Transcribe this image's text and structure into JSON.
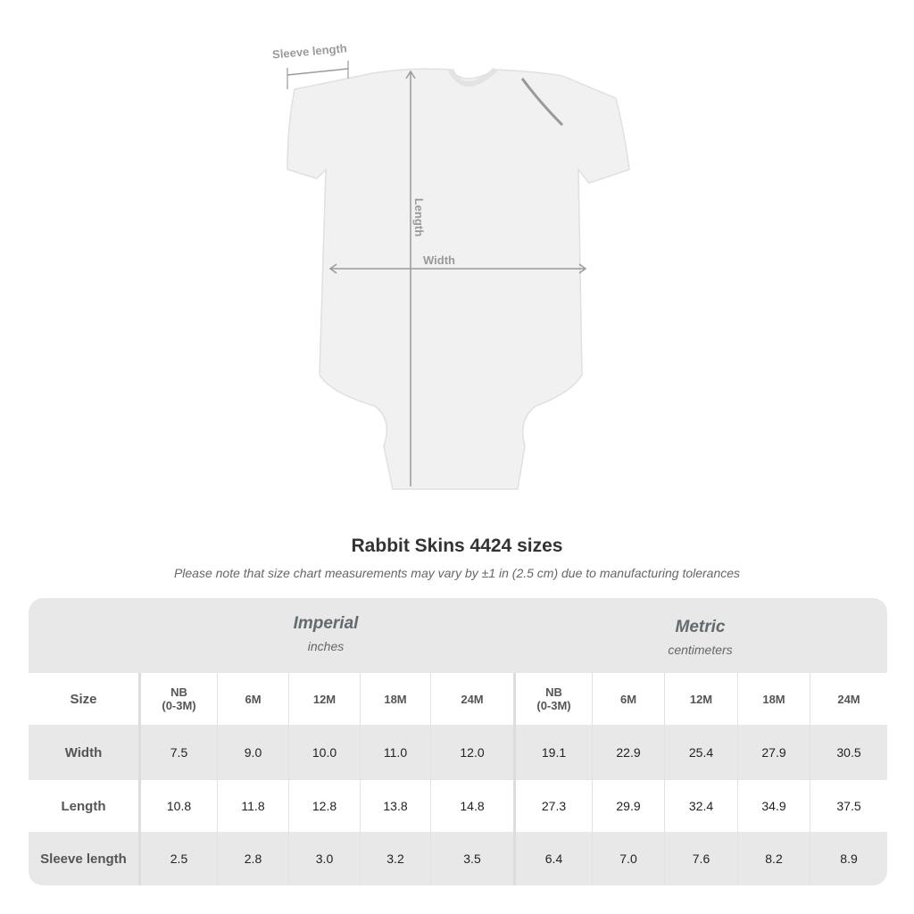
{
  "diagram": {
    "sleeve_label": "Sleeve length",
    "length_label": "Length",
    "width_label": "Width"
  },
  "title": "Rabbit Skins 4424 sizes",
  "note": "Please note that size chart measurements may vary by ±1 in (2.5 cm) due to manufacturing tolerances",
  "table": {
    "imperial": {
      "name": "Imperial",
      "unit": "inches"
    },
    "metric": {
      "name": "Metric",
      "unit": "centimeters"
    },
    "size_label": "Size",
    "sizes": [
      "NB\n(0-3M)",
      "6M",
      "12M",
      "18M",
      "24M"
    ],
    "rows": [
      {
        "label": "Width",
        "imperial": [
          "7.5",
          "9.0",
          "10.0",
          "11.0",
          "12.0"
        ],
        "metric": [
          "19.1",
          "22.9",
          "25.4",
          "27.9",
          "30.5"
        ]
      },
      {
        "label": "Length",
        "imperial": [
          "10.8",
          "11.8",
          "12.8",
          "13.8",
          "14.8"
        ],
        "metric": [
          "27.3",
          "29.9",
          "32.4",
          "34.9",
          "37.5"
        ]
      },
      {
        "label": "Sleeve length",
        "imperial": [
          "2.5",
          "2.8",
          "3.0",
          "3.2",
          "3.5"
        ],
        "metric": [
          "6.4",
          "7.0",
          "7.6",
          "8.2",
          "8.9"
        ]
      }
    ]
  }
}
